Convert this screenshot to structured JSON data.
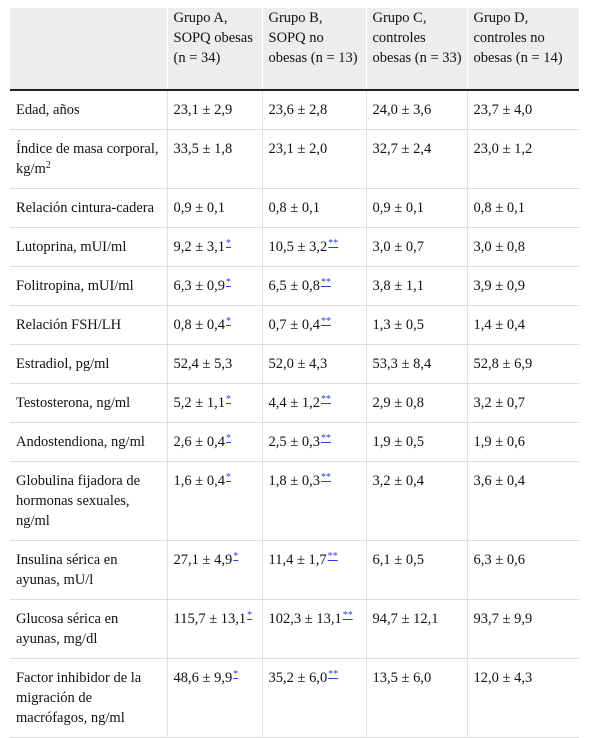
{
  "table": {
    "headers": [
      "",
      "Grupo A, SOPQ obesas (n = 34)",
      "Grupo B, SOPQ no obesas (n = 13)",
      "Grupo C, controles obesas (n = 33)",
      "Grupo D, controles no obesas (n = 14)"
    ],
    "rows": [
      {
        "label": "Edad, años",
        "a": "23,1 ± 2,9",
        "a_ref": "",
        "b": "23,6 ± 2,8",
        "b_ref": "",
        "c": "24,0 ± 3,6",
        "d": "23,7 ± 4,0"
      },
      {
        "label": "Índice de masa corporal, kg/m",
        "label_sup": "2",
        "a": "33,5 ± 1,8",
        "a_ref": "",
        "b": "23,1 ± 2,0",
        "b_ref": "",
        "c": "32,7 ± 2,4",
        "d": "23,0 ± 1,2"
      },
      {
        "label": "Relación cintura-cadera",
        "a": "0,9 ± 0,1",
        "a_ref": "",
        "b": "0,8 ± 0,1",
        "b_ref": "",
        "c": "0,9 ± 0,1",
        "d": "0,8 ± 0,1"
      },
      {
        "label": "Lutoprina, mUI/ml",
        "a": "9,2 ± 3,1",
        "a_ref": "*",
        "b": "10,5 ± 3,2",
        "b_ref": "**",
        "c": "3,0 ± 0,7",
        "d": "3,0 ± 0,8"
      },
      {
        "label": "Folitropina, mUI/ml",
        "a": "6,3 ± 0,9",
        "a_ref": "*",
        "b": "6,5 ± 0,8",
        "b_ref": "**",
        "c": "3,8 ± 1,1",
        "d": "3,9 ± 0,9"
      },
      {
        "label": "Relación FSH/LH",
        "a": "0,8 ± 0,4",
        "a_ref": "*",
        "b": "0,7 ± 0,4",
        "b_ref": "**",
        "c": "1,3 ± 0,5",
        "d": "1,4 ± 0,4"
      },
      {
        "label": "Estradiol, pg/ml",
        "a": "52,4 ± 5,3",
        "a_ref": "",
        "b": "52,0 ± 4,3",
        "b_ref": "",
        "c": "53,3 ± 8,4",
        "d": "52,8 ± 6,9"
      },
      {
        "label": "Testosterona, ng/ml",
        "a": "5,2 ± 1,1",
        "a_ref": "*",
        "b": "4,4 ± 1,2",
        "b_ref": "**",
        "c": "2,9 ± 0,8",
        "d": "3,2 ± 0,7"
      },
      {
        "label": "Andostendiona, ng/ml",
        "a": "2,6 ± 0,4",
        "a_ref": "*",
        "b": "2,5 ± 0,3",
        "b_ref": "**",
        "c": "1,9 ± 0,5",
        "d": "1,9 ± 0,6"
      },
      {
        "label": "Globulina fijadora de hormonas sexuales, ng/ml",
        "a": "1,6 ± 0,4",
        "a_ref": "*",
        "b": "1,8 ± 0,3",
        "b_ref": "**",
        "c": "3,2 ± 0,4",
        "d": "3,6 ± 0,4"
      },
      {
        "label": "Insulina sérica en ayunas, mU/l",
        "a": "27,1 ± 4,9",
        "a_ref": "*",
        "b": "11,4 ± 1,7",
        "b_ref": "**",
        "c": "6,1 ± 0,5",
        "d": "6,3 ± 0,6"
      },
      {
        "label": "Glucosa sérica en ayunas, mg/dl",
        "a": "115,7 ± 13,1",
        "a_ref": "*",
        "b": "102,3 ± 13,1",
        "b_ref": "**",
        "c": "94,7 ± 12,1",
        "d": "93,7 ± 9,9"
      },
      {
        "label": "Factor inhibidor de la migración de macrófagos, ng/ml",
        "a": "48,6 ± 9,9",
        "a_ref": "*",
        "b": "35,2 ± 6,0",
        "b_ref": "**",
        "c": "13,5 ± 6,0",
        "d": "12,0 ± 4,3"
      }
    ]
  },
  "colors": {
    "header_bg": "#ededed",
    "link": "#2a3fd4",
    "rule": "#222222"
  }
}
